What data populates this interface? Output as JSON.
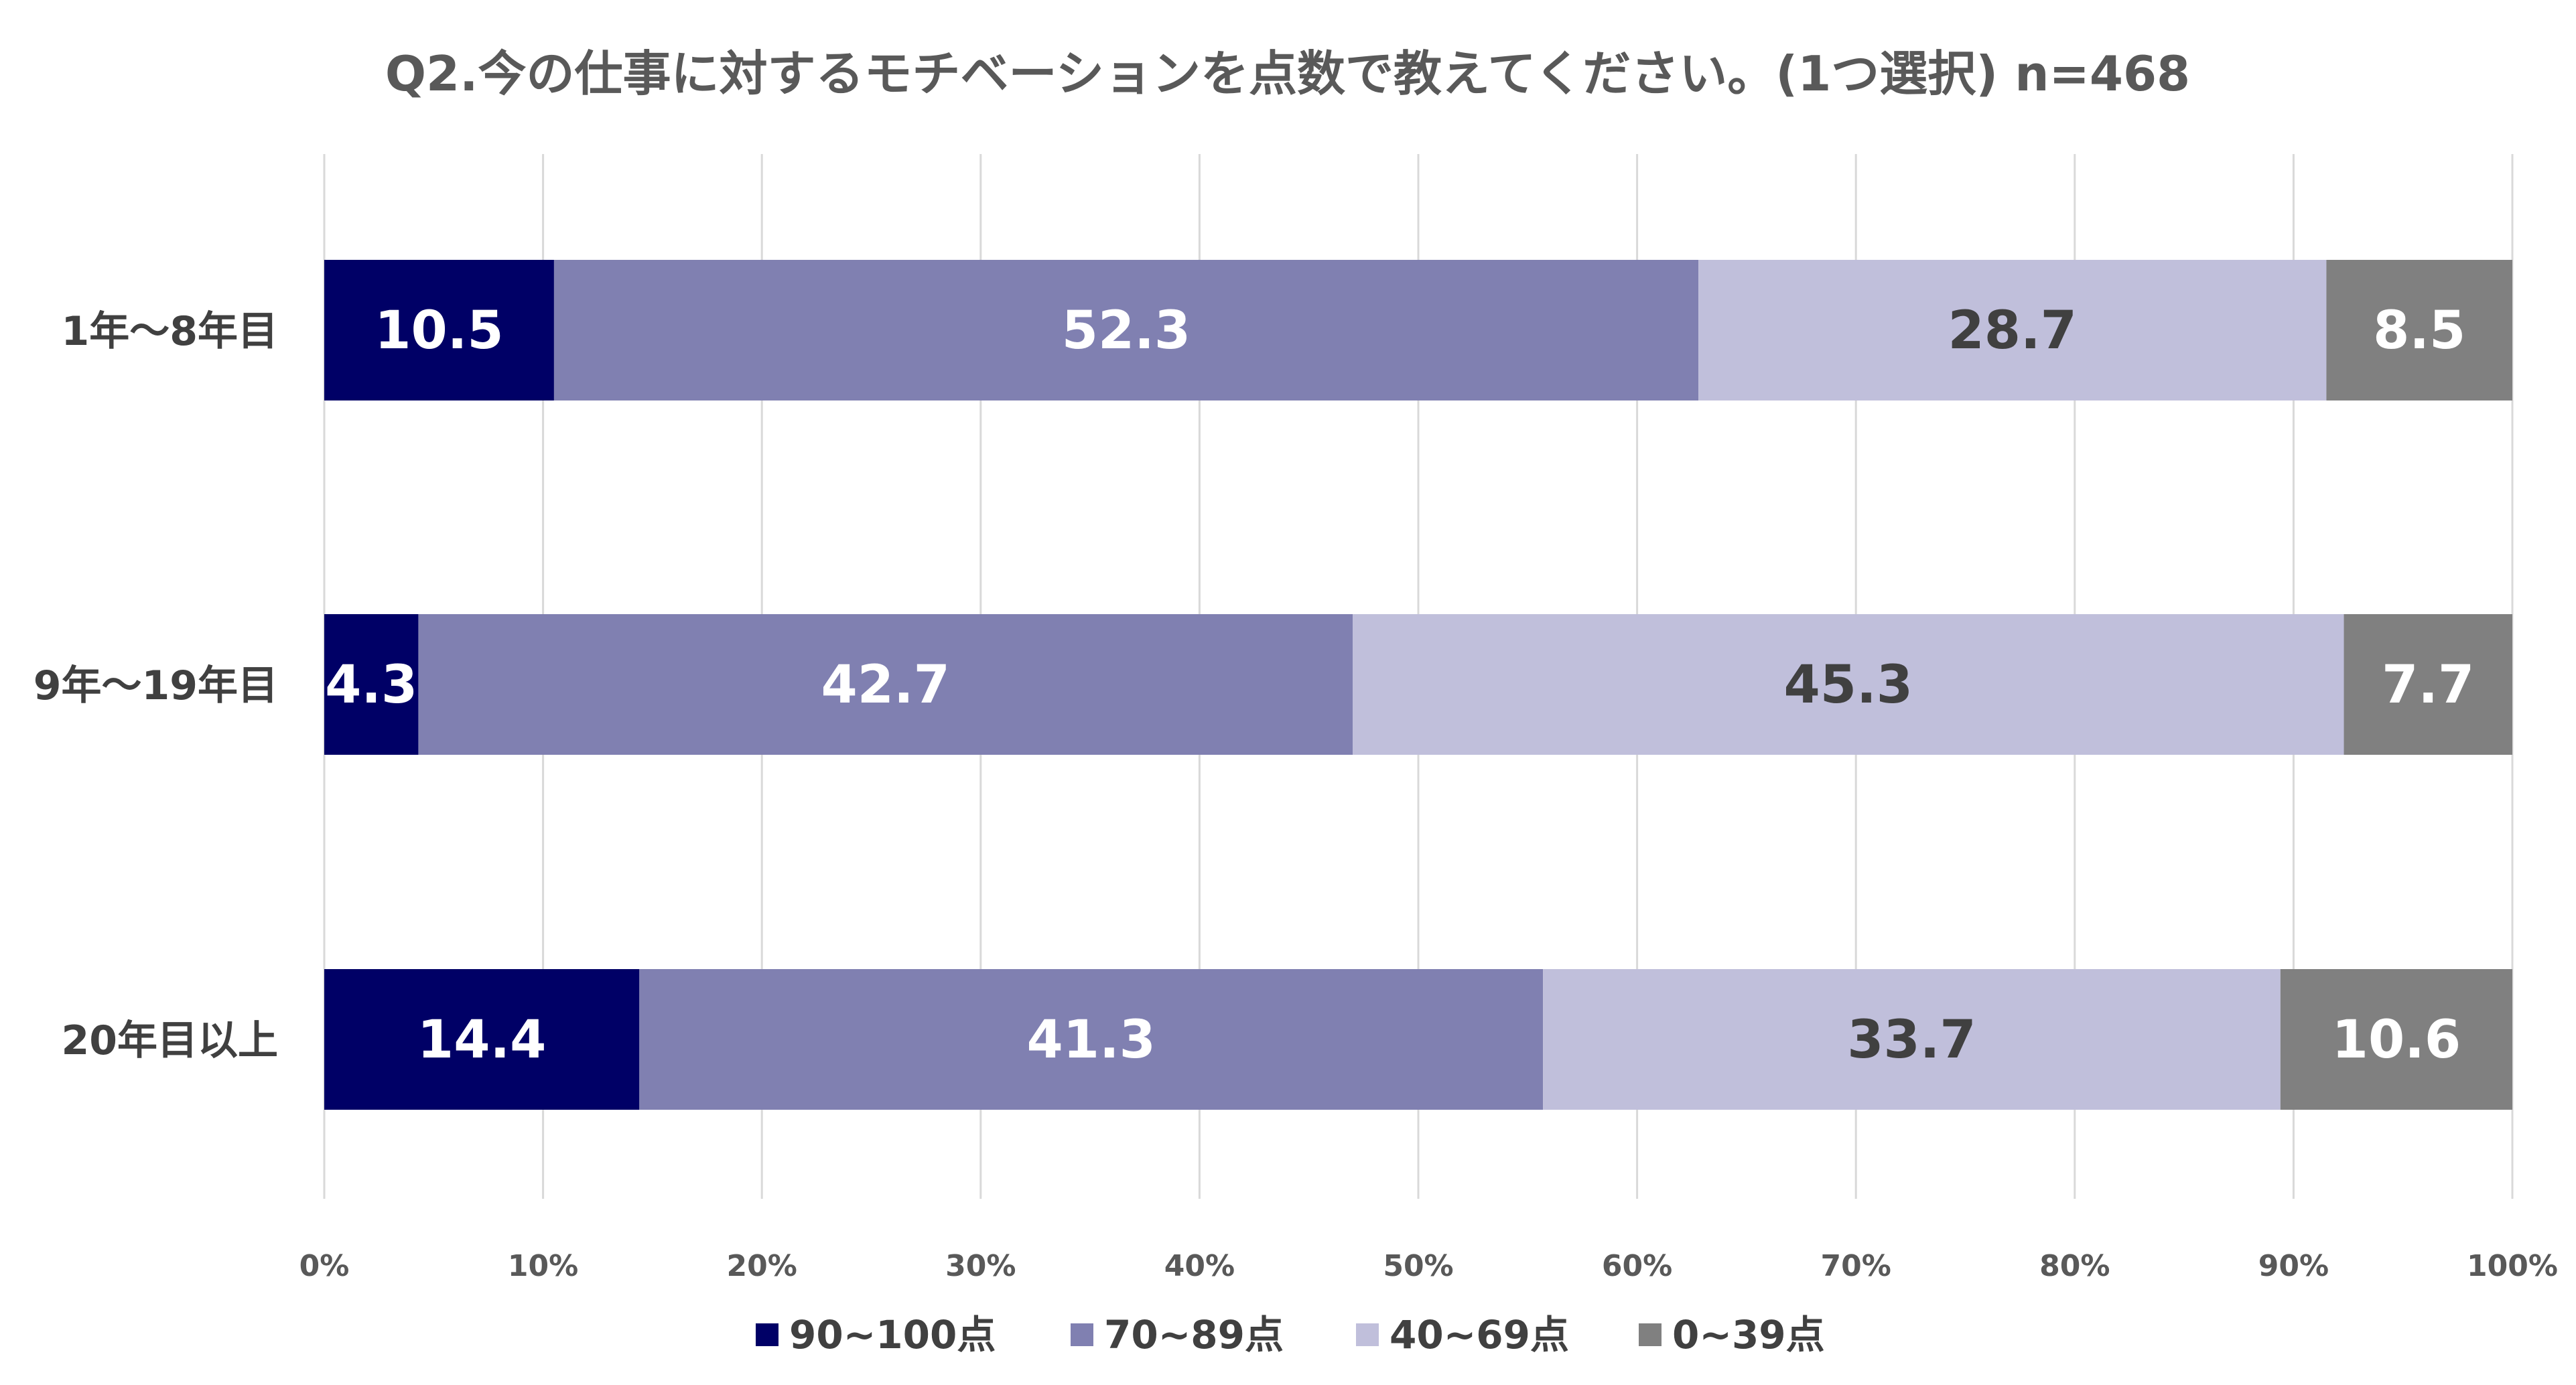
{
  "chart_data": {
    "type": "bar",
    "orientation": "horizontal",
    "stacked": true,
    "title": "Q2.今の仕事に対するモチベーションを点数で教えてください。(1つ選択) n=468",
    "categories": [
      "1年～8年目",
      "9年～19年目",
      "20年目以上"
    ],
    "series": [
      {
        "name": "90~100点",
        "color": "#000066",
        "label_color": "#ffffff",
        "values": [
          10.5,
          4.3,
          14.4
        ]
      },
      {
        "name": "70~89点",
        "color": "#8080b1",
        "label_color": "#ffffff",
        "values": [
          52.3,
          42.7,
          41.3
        ]
      },
      {
        "name": "40~69点",
        "color": "#c0bfdb",
        "label_color": "#404040",
        "values": [
          28.7,
          45.3,
          33.7
        ]
      },
      {
        "name": "0~39点",
        "color": "#808080",
        "label_color": "#ffffff",
        "values": [
          8.5,
          7.7,
          10.6
        ]
      }
    ],
    "value_labels": [
      [
        "10.5",
        "52.3",
        "28.7",
        "8.5"
      ],
      [
        "4.3",
        "42.7",
        "45.3",
        "7.7"
      ],
      [
        "14.4",
        "41.3",
        "33.7",
        "10.6"
      ]
    ],
    "xlim": [
      0,
      100
    ],
    "xticks": [
      "0%",
      "10%",
      "20%",
      "30%",
      "40%",
      "50%",
      "60%",
      "70%",
      "80%",
      "90%",
      "100%"
    ],
    "grid": true,
    "legend_position": "bottom",
    "xlabel": "",
    "ylabel": ""
  }
}
